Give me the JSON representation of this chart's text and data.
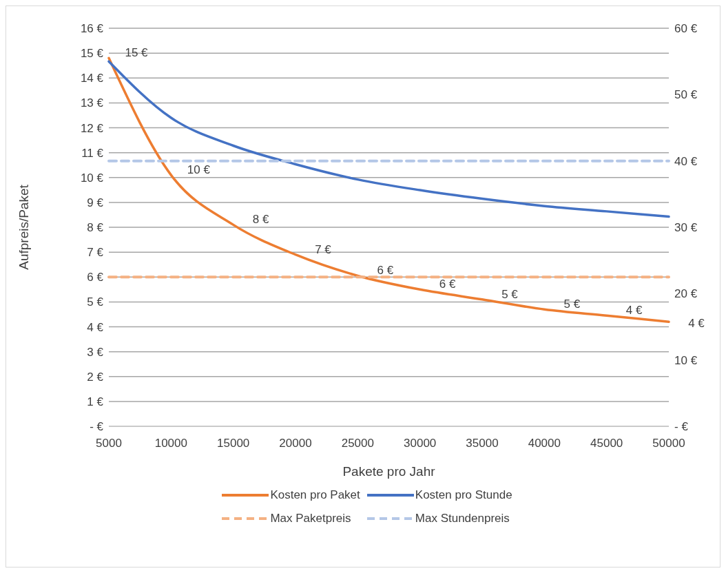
{
  "chart_data": {
    "type": "line",
    "xlabel": "Pakete pro Jahr",
    "ylabel": "Aufpreis/Paket",
    "categories": [
      "5000",
      "10000",
      "15000",
      "20000",
      "25000",
      "30000",
      "35000",
      "40000",
      "45000",
      "50000"
    ],
    "series": [
      {
        "name": "Kosten pro Paket",
        "color": "#ed7d31",
        "values": [
          14.8,
          10.1,
          8.1,
          6.9,
          6.05,
          5.5,
          5.1,
          4.7,
          4.45,
          4.2
        ],
        "value_labels": [
          "15 €",
          "10 €",
          "8 €",
          "7 €",
          "6 €",
          "6 €",
          "5 €",
          "5 €",
          "4 €",
          "4 €"
        ]
      },
      {
        "name": "Max Paketpreis",
        "color": "#f4b183",
        "line_style": "dashed",
        "values": [
          6,
          6,
          6,
          6,
          6,
          6,
          6,
          6,
          6,
          6
        ]
      },
      {
        "name": "Kosten pro Stunde",
        "color": "#4472c4",
        "axis": "y2",
        "values": [
          55,
          46.5,
          42.3,
          39.5,
          37.2,
          35.6,
          34.3,
          33.2,
          32.4,
          31.6
        ]
      },
      {
        "name": "Max Stundenpreis",
        "color": "#b4c7e7",
        "axis": "y2",
        "line_style": "dashed",
        "values": [
          40,
          40,
          40,
          40,
          40,
          40,
          40,
          40,
          40,
          40
        ]
      }
    ],
    "ylim": [
      0,
      16
    ],
    "yticks": [
      {
        "value": 0,
        "label": "-  €"
      },
      {
        "value": 1,
        "label": "1 €"
      },
      {
        "value": 2,
        "label": "2 €"
      },
      {
        "value": 3,
        "label": "3 €"
      },
      {
        "value": 4,
        "label": "4 €"
      },
      {
        "value": 5,
        "label": "5 €"
      },
      {
        "value": 6,
        "label": "6 €"
      },
      {
        "value": 7,
        "label": "7 €"
      },
      {
        "value": 8,
        "label": "8 €"
      },
      {
        "value": 9,
        "label": "9 €"
      },
      {
        "value": 10,
        "label": "10 €"
      },
      {
        "value": 11,
        "label": "11 €"
      },
      {
        "value": 12,
        "label": "12 €"
      },
      {
        "value": 13,
        "label": "13 €"
      },
      {
        "value": 14,
        "label": "14 €"
      },
      {
        "value": 15,
        "label": "15 €"
      },
      {
        "value": 16,
        "label": "16 €"
      }
    ],
    "y2lim": [
      0,
      60
    ],
    "y2ticks": [
      {
        "value": 0,
        "label": "-  €"
      },
      {
        "value": 10,
        "label": "10 €"
      },
      {
        "value": 20,
        "label": "20 €"
      },
      {
        "value": 30,
        "label": "30 €"
      },
      {
        "value": 40,
        "label": "40 €"
      },
      {
        "value": 50,
        "label": "50 €"
      },
      {
        "value": 60,
        "label": "60 €"
      }
    ],
    "grid": "y",
    "legend": "bottom",
    "marker": "none",
    "line_style": "solid"
  }
}
